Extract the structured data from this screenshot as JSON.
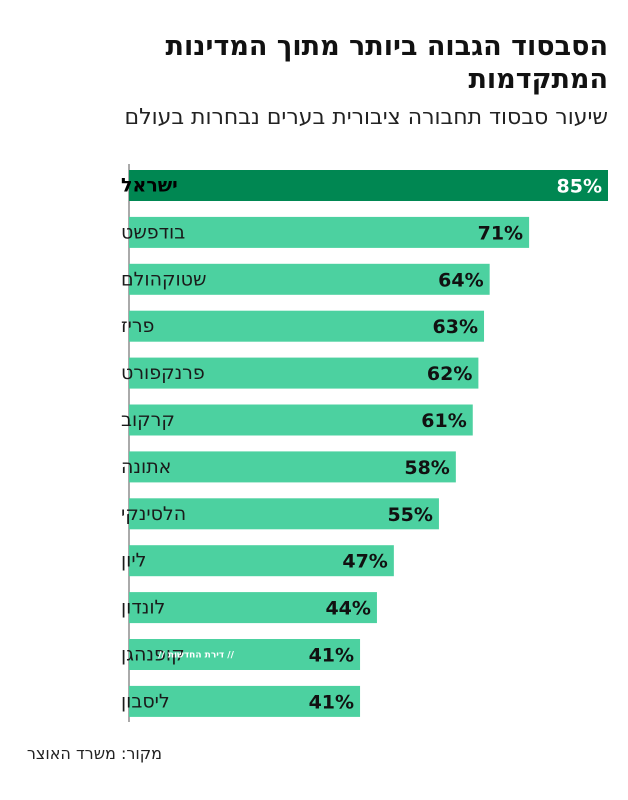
{
  "chart_data": {
    "type": "bar",
    "orientation": "horizontal",
    "title": "הסבסוד הגבוה ביותר מתוך המדינות המתקדמות",
    "subtitle": "שיעור סבסוד תחבורה ציבורית בערים נבחרות בעולם",
    "categories": [
      "ישראל",
      "בודפשט",
      "שטוקהולם",
      "פריז",
      "פרנקפורט",
      "קרקוב",
      "אתונה",
      "הלסינקי",
      "ליון",
      "לונדון",
      "קופנהגן",
      "ליסבון"
    ],
    "values": [
      85,
      71,
      64,
      63,
      62,
      61,
      58,
      55,
      47,
      44,
      41,
      41
    ],
    "value_labels": [
      "85%",
      "71%",
      "64%",
      "63%",
      "62%",
      "61%",
      "58%",
      "55%",
      "47%",
      "44%",
      "41%",
      "41%"
    ],
    "highlight": "ישראל",
    "colors": {
      "bar": "#4cd1a0",
      "highlight": "#008752"
    },
    "xlim": [
      0,
      85
    ],
    "grid": false
  },
  "watermark": "דירת החדשות",
  "source": "מקור: משרד האוצר"
}
